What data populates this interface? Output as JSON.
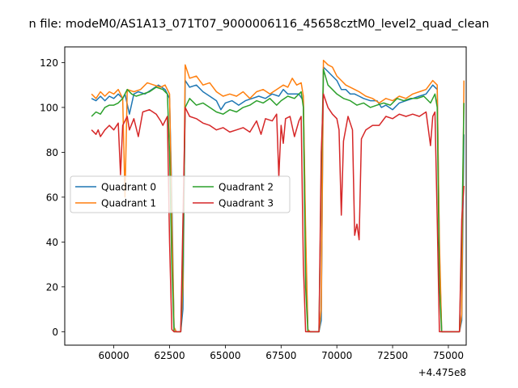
{
  "chart_data": {
    "type": "line",
    "title": "n file: modeM0/AS1A13_071T07_9000006116_45658cztM0_level2_quad_clean",
    "xlabel": "",
    "ylabel": "",
    "x_offset_label": "+4.475e8",
    "xlim": [
      57800,
      75800
    ],
    "ylim": [
      -6,
      127
    ],
    "x_ticks": [
      60000,
      62500,
      65000,
      67500,
      70000,
      72500,
      75000
    ],
    "x_tick_labels": [
      "60000",
      "62500",
      "65000",
      "67500",
      "70000",
      "72500",
      "75000"
    ],
    "y_ticks": [
      0,
      20,
      40,
      60,
      80,
      100,
      120
    ],
    "y_tick_labels": [
      "0",
      "20",
      "40",
      "60",
      "80",
      "100",
      "120"
    ],
    "grid": false,
    "legend": {
      "placement": "center-left",
      "columns": 2
    },
    "series": [
      {
        "name": "Quadrant 0",
        "color": "#1f77b4",
        "points": [
          [
            59000,
            104
          ],
          [
            59200,
            103
          ],
          [
            59400,
            105
          ],
          [
            59600,
            103
          ],
          [
            59800,
            105
          ],
          [
            60000,
            104
          ],
          [
            60200,
            106
          ],
          [
            60400,
            104
          ],
          [
            60500,
            106
          ],
          [
            60700,
            97
          ],
          [
            60900,
            106
          ],
          [
            61100,
            107
          ],
          [
            61400,
            106
          ],
          [
            61700,
            108
          ],
          [
            62000,
            110
          ],
          [
            62300,
            108
          ],
          [
            62500,
            104
          ],
          [
            62600,
            60
          ],
          [
            62700,
            2
          ],
          [
            62800,
            0
          ],
          [
            63000,
            0
          ],
          [
            63100,
            10
          ],
          [
            63200,
            112
          ],
          [
            63400,
            109
          ],
          [
            63700,
            110
          ],
          [
            64000,
            107
          ],
          [
            64300,
            105
          ],
          [
            64600,
            103
          ],
          [
            64800,
            99
          ],
          [
            65000,
            102
          ],
          [
            65300,
            103
          ],
          [
            65600,
            101
          ],
          [
            65900,
            103
          ],
          [
            66200,
            104
          ],
          [
            66500,
            105
          ],
          [
            66800,
            104
          ],
          [
            67100,
            106
          ],
          [
            67400,
            105
          ],
          [
            67600,
            108
          ],
          [
            67800,
            106
          ],
          [
            68000,
            106
          ],
          [
            68300,
            106
          ],
          [
            68500,
            103
          ],
          [
            68600,
            40
          ],
          [
            68700,
            1
          ],
          [
            68800,
            0
          ],
          [
            69200,
            0
          ],
          [
            69300,
            5
          ],
          [
            69400,
            118
          ],
          [
            69600,
            116
          ],
          [
            69800,
            114
          ],
          [
            70000,
            112
          ],
          [
            70200,
            108
          ],
          [
            70400,
            108
          ],
          [
            70600,
            106
          ],
          [
            70800,
            106
          ],
          [
            71000,
            105
          ],
          [
            71200,
            104
          ],
          [
            71500,
            103
          ],
          [
            71800,
            103
          ],
          [
            72000,
            100
          ],
          [
            72200,
            101
          ],
          [
            72500,
            99
          ],
          [
            72800,
            102
          ],
          [
            73100,
            103
          ],
          [
            73400,
            104
          ],
          [
            73700,
            105
          ],
          [
            74000,
            106
          ],
          [
            74300,
            110
          ],
          [
            74500,
            108
          ],
          [
            74600,
            35
          ],
          [
            74700,
            0
          ],
          [
            75000,
            0
          ],
          [
            75500,
            0
          ],
          [
            75600,
            5
          ],
          [
            75700,
            88
          ]
        ]
      },
      {
        "name": "Quadrant 1",
        "color": "#ff7f0e",
        "points": [
          [
            59000,
            106
          ],
          [
            59200,
            104
          ],
          [
            59400,
            107
          ],
          [
            59600,
            105
          ],
          [
            59800,
            107
          ],
          [
            60000,
            106
          ],
          [
            60200,
            108
          ],
          [
            60400,
            104
          ],
          [
            60500,
            60
          ],
          [
            60600,
            108
          ],
          [
            60900,
            107
          ],
          [
            61200,
            108
          ],
          [
            61500,
            111
          ],
          [
            61800,
            110
          ],
          [
            62100,
            109
          ],
          [
            62300,
            110
          ],
          [
            62500,
            106
          ],
          [
            62600,
            50
          ],
          [
            62700,
            2
          ],
          [
            62800,
            0
          ],
          [
            63000,
            0
          ],
          [
            63100,
            20
          ],
          [
            63200,
            119
          ],
          [
            63400,
            113
          ],
          [
            63700,
            114
          ],
          [
            64000,
            110
          ],
          [
            64300,
            111
          ],
          [
            64600,
            107
          ],
          [
            64900,
            105
          ],
          [
            65200,
            106
          ],
          [
            65500,
            105
          ],
          [
            65800,
            107
          ],
          [
            66100,
            104
          ],
          [
            66400,
            107
          ],
          [
            66700,
            108
          ],
          [
            67000,
            106
          ],
          [
            67300,
            108
          ],
          [
            67600,
            110
          ],
          [
            67800,
            109
          ],
          [
            68000,
            113
          ],
          [
            68200,
            110
          ],
          [
            68400,
            111
          ],
          [
            68500,
            105
          ],
          [
            68600,
            45
          ],
          [
            68700,
            1
          ],
          [
            68800,
            0
          ],
          [
            69200,
            0
          ],
          [
            69300,
            10
          ],
          [
            69400,
            121
          ],
          [
            69600,
            119
          ],
          [
            69800,
            118
          ],
          [
            70000,
            114
          ],
          [
            70200,
            112
          ],
          [
            70400,
            110
          ],
          [
            70600,
            109
          ],
          [
            70800,
            108
          ],
          [
            71000,
            107
          ],
          [
            71300,
            105
          ],
          [
            71600,
            104
          ],
          [
            71900,
            102
          ],
          [
            72200,
            104
          ],
          [
            72500,
            103
          ],
          [
            72800,
            105
          ],
          [
            73100,
            104
          ],
          [
            73400,
            106
          ],
          [
            73700,
            107
          ],
          [
            74000,
            108
          ],
          [
            74300,
            112
          ],
          [
            74500,
            110
          ],
          [
            74600,
            40
          ],
          [
            74700,
            0
          ],
          [
            75000,
            0
          ],
          [
            75500,
            0
          ],
          [
            75600,
            8
          ],
          [
            75700,
            112
          ]
        ]
      },
      {
        "name": "Quadrant 2",
        "color": "#2ca02c",
        "points": [
          [
            59000,
            96
          ],
          [
            59200,
            98
          ],
          [
            59400,
            97
          ],
          [
            59600,
            100
          ],
          [
            59800,
            101
          ],
          [
            60000,
            101
          ],
          [
            60200,
            102
          ],
          [
            60400,
            104
          ],
          [
            60600,
            108
          ],
          [
            60800,
            106
          ],
          [
            61000,
            105
          ],
          [
            61300,
            106
          ],
          [
            61600,
            107
          ],
          [
            61900,
            109
          ],
          [
            62200,
            108
          ],
          [
            62400,
            106
          ],
          [
            62500,
            80
          ],
          [
            62600,
            30
          ],
          [
            62700,
            0
          ],
          [
            63000,
            0
          ],
          [
            63100,
            30
          ],
          [
            63200,
            100
          ],
          [
            63400,
            104
          ],
          [
            63700,
            101
          ],
          [
            64000,
            102
          ],
          [
            64300,
            100
          ],
          [
            64600,
            98
          ],
          [
            64900,
            97
          ],
          [
            65200,
            99
          ],
          [
            65500,
            98
          ],
          [
            65800,
            100
          ],
          [
            66100,
            101
          ],
          [
            66400,
            103
          ],
          [
            66700,
            102
          ],
          [
            67000,
            104
          ],
          [
            67300,
            101
          ],
          [
            67500,
            103
          ],
          [
            67800,
            105
          ],
          [
            68100,
            104
          ],
          [
            68400,
            107
          ],
          [
            68500,
            100
          ],
          [
            68600,
            20
          ],
          [
            68700,
            0
          ],
          [
            69200,
            0
          ],
          [
            69300,
            70
          ],
          [
            69400,
            117
          ],
          [
            69600,
            110
          ],
          [
            69800,
            108
          ],
          [
            70000,
            106
          ],
          [
            70300,
            104
          ],
          [
            70600,
            103
          ],
          [
            70900,
            101
          ],
          [
            71200,
            102
          ],
          [
            71500,
            100
          ],
          [
            71800,
            101
          ],
          [
            72100,
            102
          ],
          [
            72400,
            101
          ],
          [
            72700,
            104
          ],
          [
            73000,
            103
          ],
          [
            73300,
            104
          ],
          [
            73600,
            104
          ],
          [
            73900,
            105
          ],
          [
            74200,
            102
          ],
          [
            74400,
            106
          ],
          [
            74500,
            100
          ],
          [
            74600,
            20
          ],
          [
            74700,
            0
          ],
          [
            75000,
            0
          ],
          [
            75500,
            0
          ],
          [
            75600,
            40
          ],
          [
            75700,
            102
          ]
        ]
      },
      {
        "name": "Quadrant 3",
        "color": "#d62728",
        "points": [
          [
            59000,
            90
          ],
          [
            59200,
            88
          ],
          [
            59300,
            90
          ],
          [
            59400,
            87
          ],
          [
            59600,
            90
          ],
          [
            59800,
            92
          ],
          [
            60000,
            90
          ],
          [
            60200,
            93
          ],
          [
            60300,
            70
          ],
          [
            60400,
            92
          ],
          [
            60600,
            96
          ],
          [
            60700,
            90
          ],
          [
            60900,
            95
          ],
          [
            61100,
            87
          ],
          [
            61300,
            98
          ],
          [
            61600,
            99
          ],
          [
            61900,
            97
          ],
          [
            62100,
            94
          ],
          [
            62200,
            92
          ],
          [
            62400,
            96
          ],
          [
            62500,
            40
          ],
          [
            62600,
            1
          ],
          [
            62700,
            0
          ],
          [
            63000,
            0
          ],
          [
            63200,
            100
          ],
          [
            63400,
            96
          ],
          [
            63700,
            95
          ],
          [
            64000,
            93
          ],
          [
            64300,
            92
          ],
          [
            64600,
            90
          ],
          [
            64900,
            91
          ],
          [
            65200,
            89
          ],
          [
            65500,
            90
          ],
          [
            65800,
            91
          ],
          [
            66100,
            89
          ],
          [
            66400,
            94
          ],
          [
            66600,
            88
          ],
          [
            66800,
            95
          ],
          [
            67100,
            94
          ],
          [
            67300,
            97
          ],
          [
            67400,
            69
          ],
          [
            67500,
            92
          ],
          [
            67600,
            84
          ],
          [
            67700,
            95
          ],
          [
            67900,
            96
          ],
          [
            68100,
            87
          ],
          [
            68300,
            94
          ],
          [
            68400,
            96
          ],
          [
            68500,
            30
          ],
          [
            68600,
            0
          ],
          [
            69200,
            0
          ],
          [
            69300,
            80
          ],
          [
            69400,
            106
          ],
          [
            69600,
            100
          ],
          [
            69800,
            97
          ],
          [
            70000,
            95
          ],
          [
            70100,
            90
          ],
          [
            70200,
            52
          ],
          [
            70300,
            85
          ],
          [
            70500,
            96
          ],
          [
            70700,
            90
          ],
          [
            70800,
            43
          ],
          [
            70900,
            48
          ],
          [
            71000,
            41
          ],
          [
            71100,
            86
          ],
          [
            71300,
            90
          ],
          [
            71600,
            92
          ],
          [
            71900,
            92
          ],
          [
            72200,
            96
          ],
          [
            72500,
            95
          ],
          [
            72800,
            97
          ],
          [
            73100,
            96
          ],
          [
            73400,
            97
          ],
          [
            73700,
            96
          ],
          [
            74000,
            98
          ],
          [
            74200,
            83
          ],
          [
            74300,
            96
          ],
          [
            74400,
            98
          ],
          [
            74500,
            50
          ],
          [
            74600,
            0
          ],
          [
            75000,
            0
          ],
          [
            75500,
            0
          ],
          [
            75600,
            50
          ],
          [
            75700,
            65
          ]
        ]
      }
    ]
  }
}
